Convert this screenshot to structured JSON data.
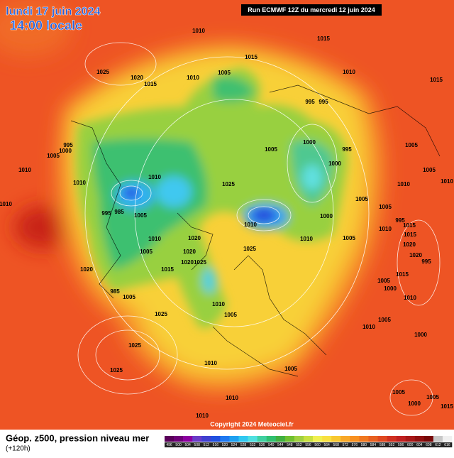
{
  "header": {
    "date": "lundi 17 juin 2024",
    "time": "14:00 locale",
    "run": "Run ECMWF 12Z du mercredi 12 juin 2024"
  },
  "footer": {
    "title": "Géop. z500, pression niveau mer",
    "lead": "(+120h)",
    "copyright": "Copyright 2024 Meteociel.fr"
  },
  "isobar_labels": [
    "1010",
    "1015",
    "1025",
    "1020",
    "1015",
    "1005",
    "1015",
    "1010",
    "1010",
    "1015",
    "995",
    "995",
    "995",
    "1000",
    "1005",
    "1010",
    "1010",
    "1010",
    "1005",
    "1000",
    "995",
    "1000",
    "1025",
    "1010",
    "995",
    "985",
    "1005",
    "1010",
    "1000",
    "1005",
    "1005",
    "1010",
    "1005",
    "1020",
    "1010",
    "1005",
    "1025",
    "1020",
    "1020",
    "1025",
    "1015",
    "1020",
    "985",
    "1005",
    "1010",
    "1005",
    "1025",
    "1025",
    "1025",
    "1010",
    "1005",
    "1010",
    "1010",
    "1010",
    "1005",
    "1000",
    "1005",
    "1000",
    "1005",
    "1015",
    "1000",
    "1010",
    "1015",
    "995",
    "1020",
    "1020",
    "1015",
    "1010",
    "1005",
    "1010",
    "1015",
    "995",
    "1010",
    "1005",
    "1005"
  ],
  "legend": {
    "labels": [
      496,
      500,
      504,
      508,
      512,
      516,
      520,
      524,
      528,
      532,
      536,
      540,
      544,
      548,
      552,
      556,
      560,
      564,
      568,
      572,
      576,
      580,
      584,
      588,
      592,
      596,
      600,
      604,
      608,
      612,
      616
    ],
    "colors": [
      "#5a005a",
      "#6e0078",
      "#8c00a0",
      "#6a3cc8",
      "#4040d0",
      "#2050e0",
      "#1e78f0",
      "#1ea0f0",
      "#30c8f0",
      "#50e0e0",
      "#40d0a0",
      "#30c070",
      "#40b040",
      "#70c030",
      "#a0d040",
      "#c8e040",
      "#f0f050",
      "#f8e040",
      "#f8c830",
      "#f8a828",
      "#f89020",
      "#f07820",
      "#e86020",
      "#e04820",
      "#d03020",
      "#c02020",
      "#a81818",
      "#901010",
      "#780808",
      "#c8c8c8",
      "#f0f0f0"
    ]
  }
}
